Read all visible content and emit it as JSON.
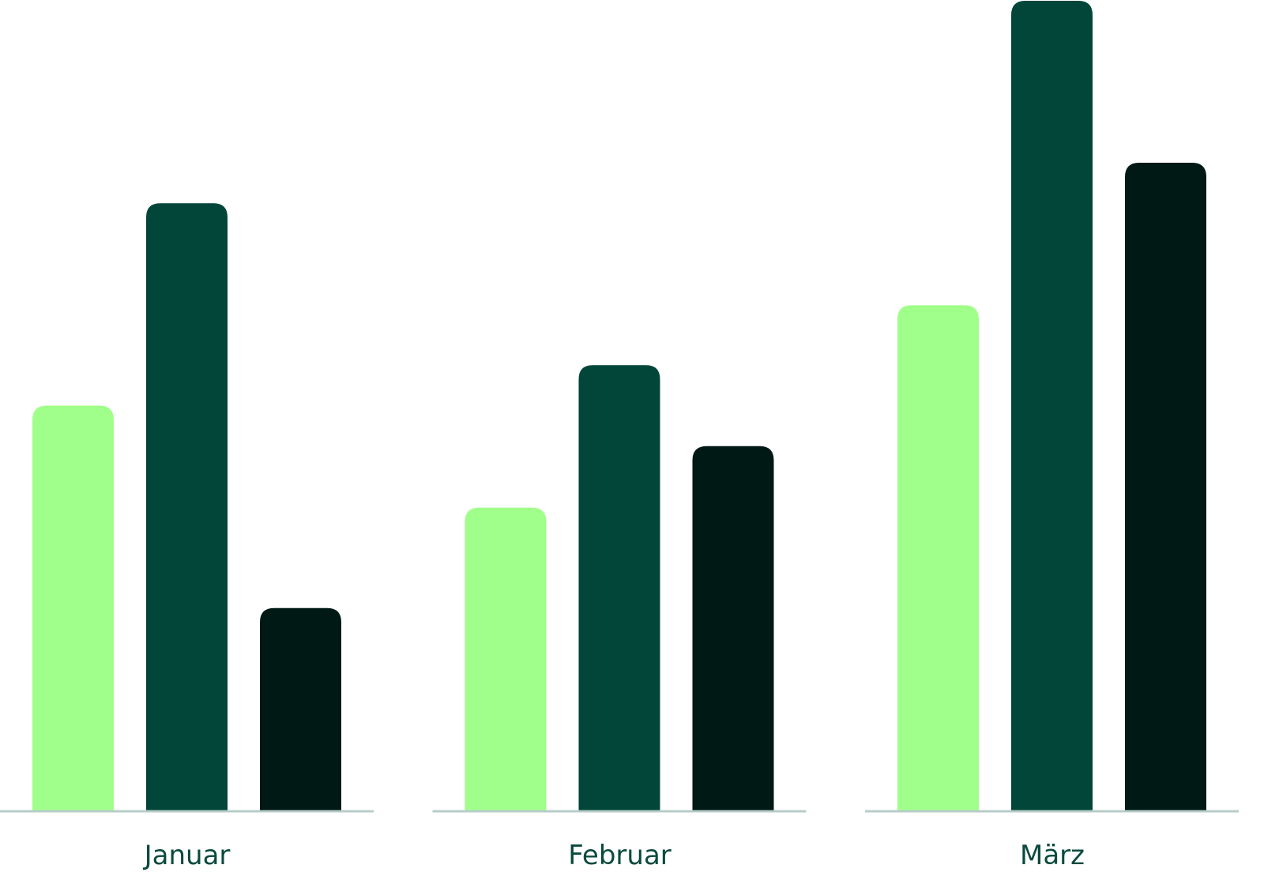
{
  "chart_data": {
    "type": "bar",
    "title": "",
    "xlabel": "",
    "ylabel": "",
    "categories": [
      "Januar",
      "Februar",
      "März"
    ],
    "series": [
      {
        "values": [
          50,
          37.4,
          62.4
        ],
        "color": "#a0ff8a"
      },
      {
        "values": [
          75,
          55,
          100
        ],
        "color": "#02463a"
      },
      {
        "values": [
          25,
          45,
          80
        ],
        "color": "#011915"
      }
    ],
    "ylim": [
      0,
      100
    ],
    "grid": false,
    "legend": "none",
    "baseline_color": "#b8ccc8"
  }
}
